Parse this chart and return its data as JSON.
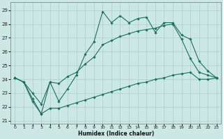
{
  "xlabel": "Humidex (Indice chaleur)",
  "bg_color": "#cce8e5",
  "line_color": "#1a7060",
  "grid_color": "#aacfcc",
  "xlim": [
    -0.5,
    23.5
  ],
  "ylim": [
    20.8,
    29.6
  ],
  "xticks": [
    0,
    1,
    2,
    3,
    4,
    5,
    6,
    7,
    8,
    9,
    10,
    11,
    12,
    13,
    14,
    15,
    16,
    17,
    18,
    19,
    20,
    21,
    22,
    23
  ],
  "yticks": [
    21,
    22,
    23,
    24,
    25,
    26,
    27,
    28,
    29
  ],
  "main_y": [
    24.1,
    23.8,
    22.6,
    21.5,
    23.8,
    22.4,
    23.3,
    24.3,
    25.8,
    26.7,
    28.9,
    28.1,
    28.6,
    28.1,
    28.4,
    28.5,
    27.4,
    28.1,
    28.1,
    27.2,
    26.9,
    25.3,
    24.6,
    24.1
  ],
  "upper_y": [
    24.1,
    23.8,
    23.0,
    22.2,
    23.8,
    23.7,
    24.2,
    24.5,
    25.1,
    25.6,
    26.5,
    26.8,
    27.1,
    27.3,
    27.5,
    27.6,
    27.7,
    27.9,
    28.0,
    26.9,
    25.5,
    24.5,
    24.3,
    24.1
  ],
  "lower_y": [
    24.1,
    23.8,
    22.4,
    21.5,
    21.9,
    21.9,
    22.1,
    22.3,
    22.5,
    22.7,
    22.9,
    23.1,
    23.3,
    23.5,
    23.7,
    23.8,
    24.0,
    24.1,
    24.3,
    24.4,
    24.5,
    24.0,
    24.0,
    24.1
  ]
}
